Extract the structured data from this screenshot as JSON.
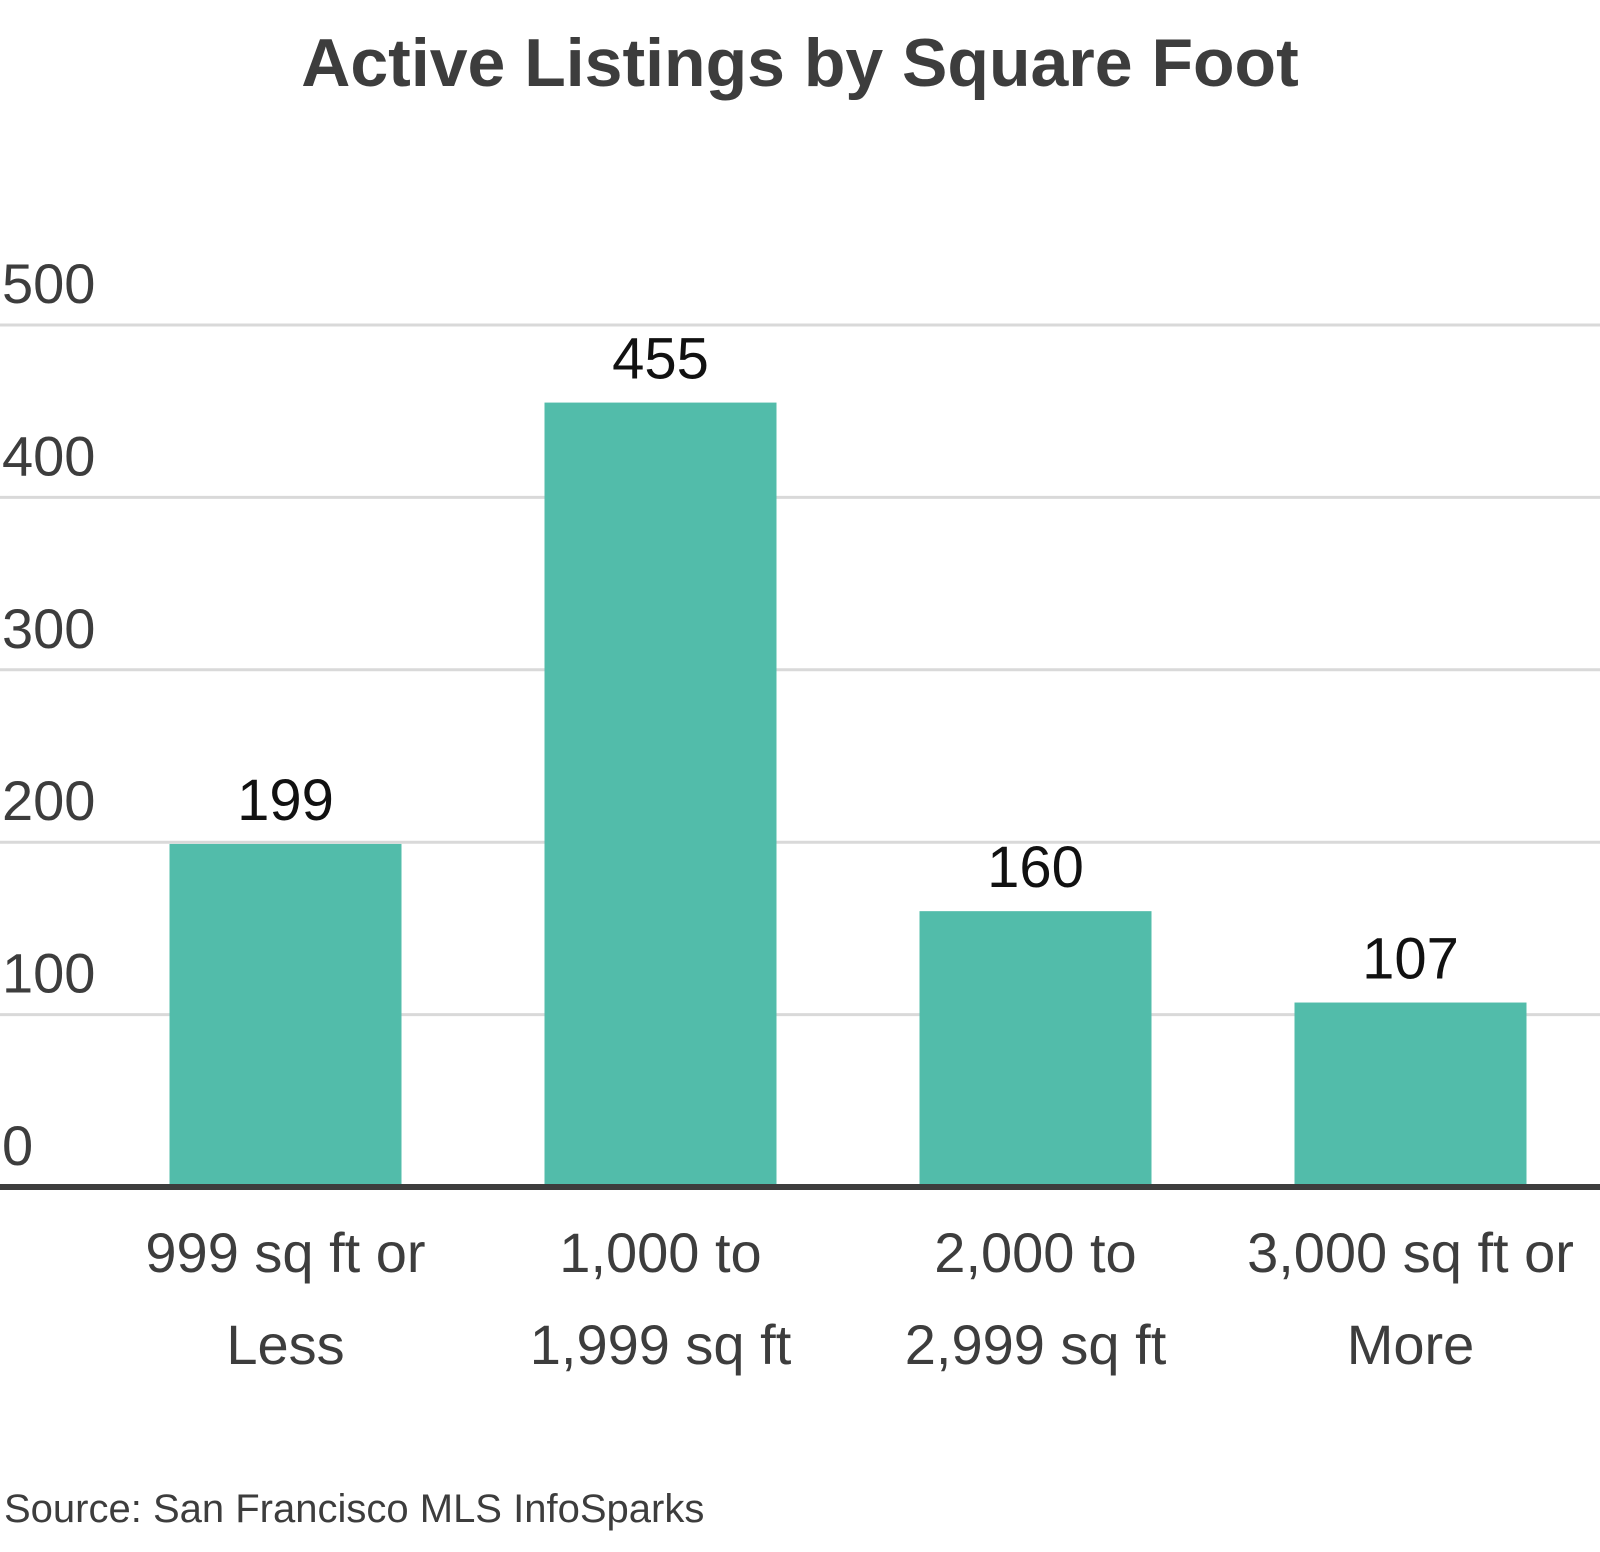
{
  "chart_data": {
    "type": "bar",
    "title": "Active Listings by Square Foot",
    "categories": [
      [
        "999 sq ft or",
        "Less"
      ],
      [
        "1,000 to",
        "1,999 sq ft"
      ],
      [
        "2,000 to",
        "2,999 sq ft"
      ],
      [
        "3,000 sq ft or",
        "More"
      ]
    ],
    "values": [
      199,
      455,
      160,
      107
    ],
    "data_labels": [
      "199",
      "455",
      "160",
      "107"
    ],
    "ylim": [
      0,
      500
    ],
    "yticks": [
      0,
      100,
      200,
      300,
      400,
      500
    ],
    "ytick_labels": [
      "0",
      "100",
      "200",
      "300",
      "400",
      "500"
    ],
    "xlabel": "",
    "ylabel": "",
    "grid": true,
    "bar_color": "#52bcaa",
    "source": "Source:  San Francisco MLS InfoSparks"
  }
}
